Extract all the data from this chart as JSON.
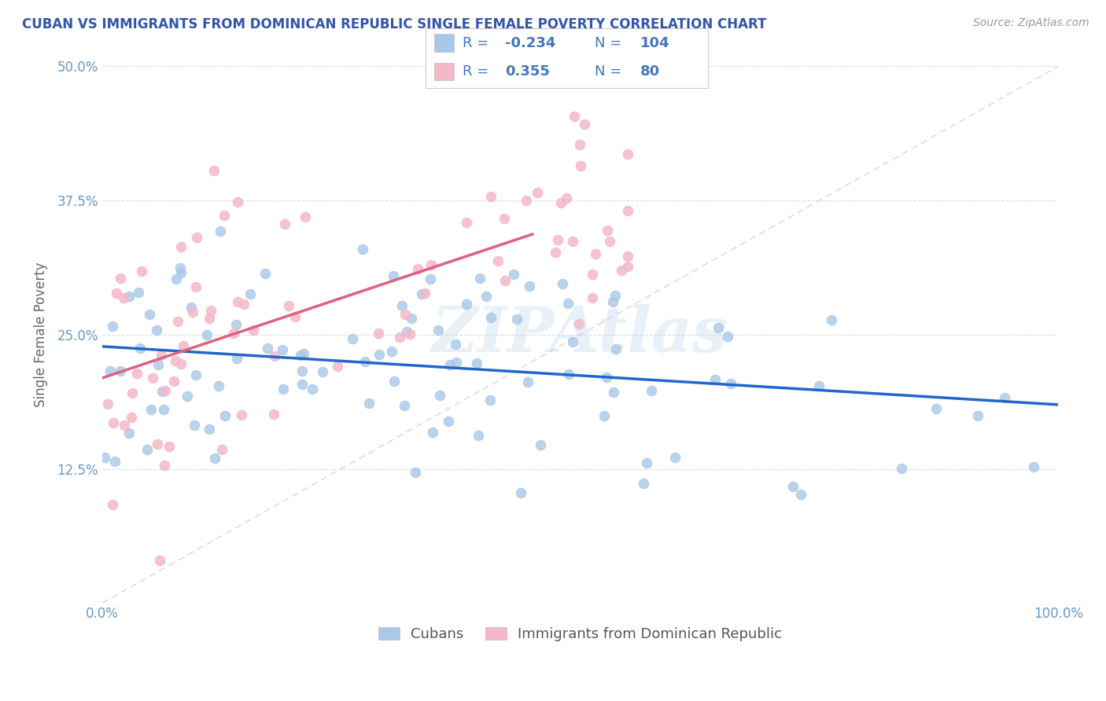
{
  "title": "CUBAN VS IMMIGRANTS FROM DOMINICAN REPUBLIC SINGLE FEMALE POVERTY CORRELATION CHART",
  "source_text": "Source: ZipAtlas.com",
  "ylabel": "Single Female Poverty",
  "watermark": "ZIPAtlas",
  "xlim": [
    0,
    1
  ],
  "ylim": [
    0,
    0.5
  ],
  "yticks": [
    0.0,
    0.125,
    0.25,
    0.375,
    0.5
  ],
  "ytick_labels": [
    "",
    "12.5%",
    "25.0%",
    "37.5%",
    "50.0%"
  ],
  "blue_color": "#a8c8e8",
  "pink_color": "#f5b8c8",
  "blue_line_color": "#2266cc",
  "pink_line_color": "#e06080",
  "title_color": "#3355aa",
  "axis_label_color": "#6699cc",
  "legend_text_color": "#4477bb",
  "r1_val": "-0.234",
  "n1_val": "104",
  "r2_val": "0.355",
  "n2_val": "80"
}
